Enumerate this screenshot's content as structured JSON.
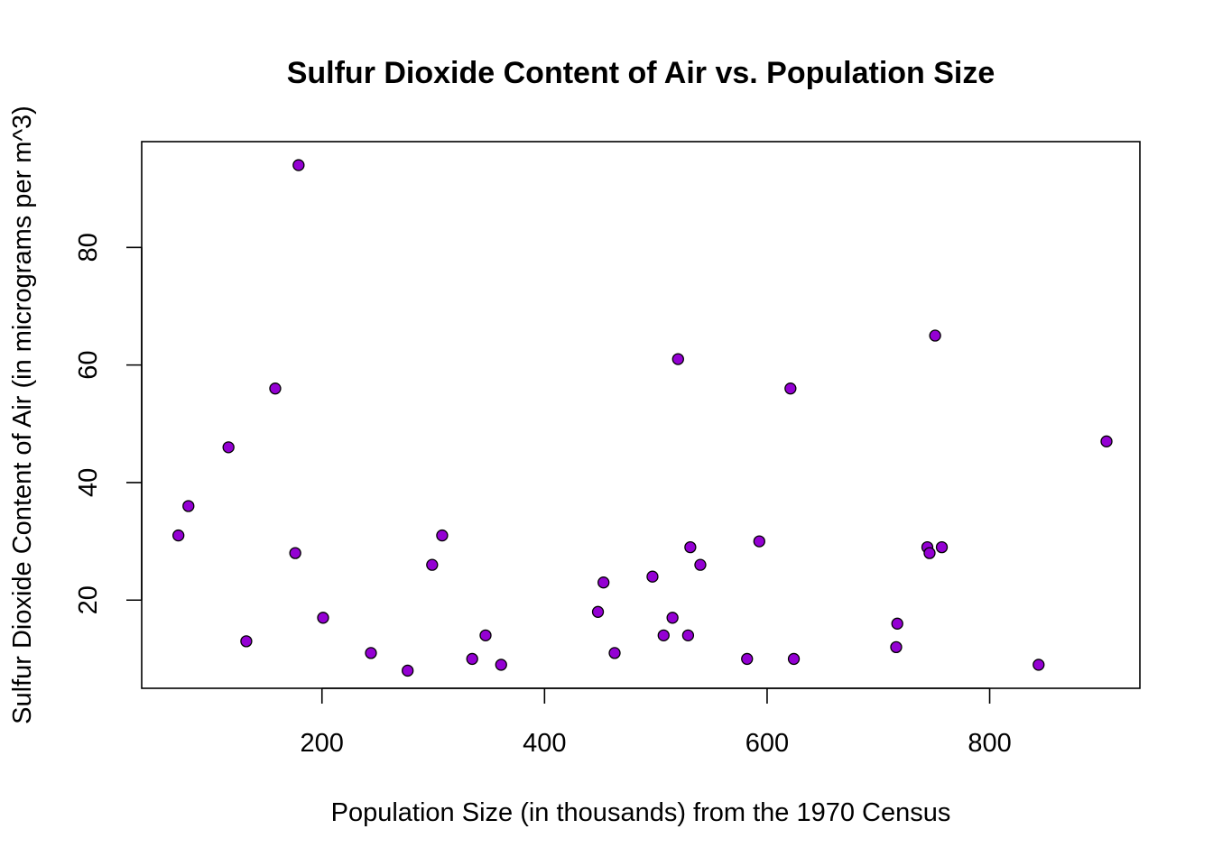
{
  "chart_data": {
    "type": "scatter",
    "title": "Sulfur Dioxide Content of Air vs. Population Size",
    "xlabel": "Population Size (in thousands) from the 1970 Census",
    "ylabel": "Sulfur Dioxide Content of Air (in micrograms per m^3)",
    "xlim": [
      38,
      935
    ],
    "ylim": [
      5,
      98
    ],
    "xticks": [
      200,
      400,
      600,
      800
    ],
    "yticks": [
      20,
      40,
      60,
      80
    ],
    "grid": false,
    "point_fill": "#9400D3",
    "point_stroke": "#000000",
    "points": [
      {
        "x": 71,
        "y": 31
      },
      {
        "x": 80,
        "y": 36
      },
      {
        "x": 116,
        "y": 46
      },
      {
        "x": 132,
        "y": 13
      },
      {
        "x": 158,
        "y": 56
      },
      {
        "x": 176,
        "y": 28
      },
      {
        "x": 179,
        "y": 94
      },
      {
        "x": 201,
        "y": 17
      },
      {
        "x": 244,
        "y": 11
      },
      {
        "x": 277,
        "y": 8
      },
      {
        "x": 299,
        "y": 26
      },
      {
        "x": 308,
        "y": 31
      },
      {
        "x": 335,
        "y": 10
      },
      {
        "x": 347,
        "y": 14
      },
      {
        "x": 361,
        "y": 9
      },
      {
        "x": 448,
        "y": 18
      },
      {
        "x": 453,
        "y": 23
      },
      {
        "x": 463,
        "y": 11
      },
      {
        "x": 497,
        "y": 24
      },
      {
        "x": 507,
        "y": 14
      },
      {
        "x": 515,
        "y": 17
      },
      {
        "x": 520,
        "y": 61
      },
      {
        "x": 529,
        "y": 14
      },
      {
        "x": 531,
        "y": 29
      },
      {
        "x": 540,
        "y": 26
      },
      {
        "x": 582,
        "y": 10
      },
      {
        "x": 593,
        "y": 30
      },
      {
        "x": 621,
        "y": 56
      },
      {
        "x": 624,
        "y": 10
      },
      {
        "x": 716,
        "y": 12
      },
      {
        "x": 717,
        "y": 16
      },
      {
        "x": 744,
        "y": 29
      },
      {
        "x": 746,
        "y": 28
      },
      {
        "x": 751,
        "y": 65
      },
      {
        "x": 757,
        "y": 29
      },
      {
        "x": 844,
        "y": 9
      },
      {
        "x": 905,
        "y": 47
      }
    ]
  }
}
